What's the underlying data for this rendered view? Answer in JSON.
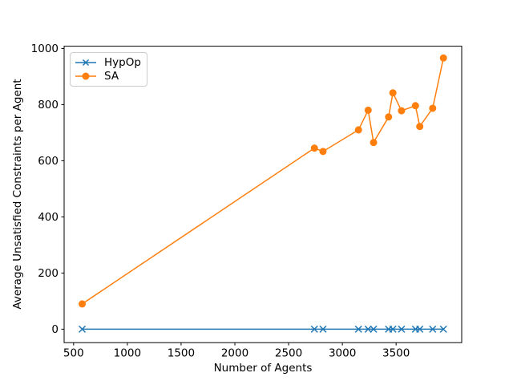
{
  "chart_data": {
    "type": "line",
    "title": "",
    "xlabel": "Number of Agents",
    "ylabel": "Average Unsatisfied Constraints per Agent",
    "x_ticks": [
      500,
      1000,
      1500,
      2000,
      2500,
      3000,
      3500
    ],
    "y_ticks": [
      0,
      200,
      400,
      600,
      800,
      1000
    ],
    "xlim": [
      412,
      4110
    ],
    "ylim": [
      -48,
      1008
    ],
    "grid": false,
    "axis_color": "#000000",
    "legend": {
      "position": "upper-left",
      "border_color": "#cccccc"
    },
    "x": [
      580,
      2740,
      2820,
      3150,
      3240,
      3290,
      3430,
      3470,
      3550,
      3680,
      3720,
      3840,
      3940
    ],
    "series": [
      {
        "name": "HypOp",
        "color": "#1f77b4",
        "marker": "x",
        "values": [
          0,
          0,
          0,
          0,
          0,
          0,
          0,
          0,
          0,
          0,
          0,
          0,
          0
        ]
      },
      {
        "name": "SA",
        "color": "#ff7f0e",
        "marker": "circle",
        "values": [
          90,
          645,
          633,
          710,
          780,
          665,
          756,
          842,
          778,
          796,
          722,
          787,
          966
        ]
      }
    ]
  }
}
